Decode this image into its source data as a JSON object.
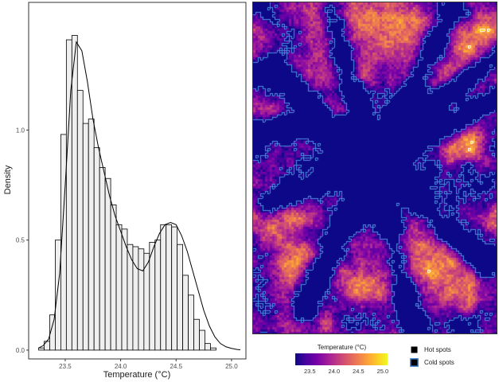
{
  "chart_data": [
    {
      "type": "histogram",
      "xlabel": "Temperature (°C)",
      "ylabel": "Density",
      "xlim": [
        23.17,
        25.13
      ],
      "ylim": [
        -0.04,
        1.58
      ],
      "xticks": [
        "23.5",
        "24.0",
        "24.5",
        "25.0"
      ],
      "xtick_values": [
        23.5,
        24.0,
        24.5,
        25.0
      ],
      "yticks": [
        "0.0",
        "0.5",
        "1.0"
      ],
      "ytick_values": [
        0.0,
        0.5,
        1.0
      ],
      "bin_start": 23.26,
      "bin_width": 0.05,
      "bin_density": [
        0.01,
        0.04,
        0.16,
        0.5,
        0.98,
        1.41,
        1.43,
        1.18,
        1.03,
        1.05,
        0.92,
        0.83,
        0.78,
        0.66,
        0.57,
        0.55,
        0.48,
        0.47,
        0.46,
        0.44,
        0.49,
        0.5,
        0.57,
        0.57,
        0.56,
        0.48,
        0.34,
        0.25,
        0.14,
        0.09,
        0.03,
        0.01
      ],
      "density_curve": {
        "x": [
          23.26,
          23.3,
          23.35,
          23.4,
          23.45,
          23.5,
          23.55,
          23.6,
          23.65,
          23.7,
          23.75,
          23.8,
          23.85,
          23.9,
          23.95,
          24.0,
          24.05,
          24.1,
          24.15,
          24.2,
          24.25,
          24.3,
          24.35,
          24.4,
          24.45,
          24.5,
          24.55,
          24.6,
          24.65,
          24.7,
          24.75,
          24.8,
          24.85,
          24.9,
          24.95,
          25.0,
          25.05,
          25.08
        ],
        "y": [
          0.01,
          0.02,
          0.05,
          0.14,
          0.35,
          0.75,
          1.18,
          1.4,
          1.36,
          1.22,
          1.05,
          0.92,
          0.81,
          0.7,
          0.61,
          0.54,
          0.47,
          0.41,
          0.37,
          0.36,
          0.4,
          0.47,
          0.53,
          0.57,
          0.58,
          0.57,
          0.52,
          0.45,
          0.36,
          0.27,
          0.18,
          0.11,
          0.06,
          0.03,
          0.015,
          0.008,
          0.003,
          0.001
        ]
      }
    },
    {
      "type": "heatmap",
      "colorbar_title": "Temperature (°C)",
      "colorbar_range": [
        23.2,
        25.1
      ],
      "colorbar_ticks": [
        "23.5",
        "24.0",
        "24.5",
        "25.0"
      ],
      "colorbar_tick_values": [
        23.5,
        24.0,
        24.5,
        25.0
      ],
      "colormap": [
        "#0d0887",
        "#46039f",
        "#7201a8",
        "#9c179e",
        "#bd3786",
        "#d8576b",
        "#ed7953",
        "#fb9f3a",
        "#fdca26",
        "#f0f921"
      ],
      "legend": [
        {
          "label": "Hot spots",
          "outline_color": "#ffffff"
        },
        {
          "label": "Cold spots",
          "outline_color": "#4a8fe0"
        }
      ]
    }
  ]
}
